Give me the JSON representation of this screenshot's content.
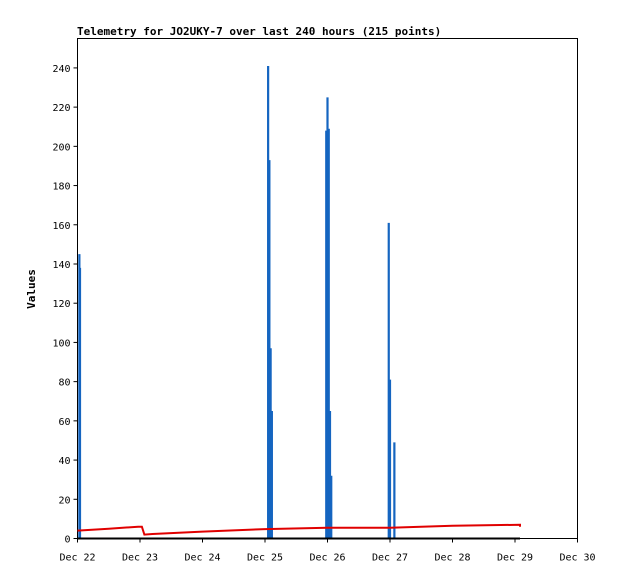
{
  "chart_data": {
    "type": "line",
    "title": "Telemetry for JO2UKY-7 over last 240 hours (215 points)",
    "xlabel": "",
    "ylabel": "Values",
    "x_ticks": [
      "Dec 22",
      "Dec 23",
      "Dec 24",
      "Dec 25",
      "Dec 26",
      "Dec 27",
      "Dec 28",
      "Dec 29",
      "Dec 30"
    ],
    "y_ticks": [
      0,
      20,
      40,
      60,
      80,
      100,
      120,
      140,
      160,
      180,
      200,
      220,
      240
    ],
    "xlim": [
      "Dec 22",
      "Dec 30"
    ],
    "ylim": [
      0,
      255
    ],
    "grid": false,
    "legend": "none",
    "colors": {
      "spikes": "#1565c0",
      "baseline": "#e00000",
      "zero": "#000000"
    },
    "series": [
      {
        "color": "#1565c0",
        "style": "spikes",
        "points": [
          {
            "x": 22.03,
            "y": 145
          },
          {
            "x": 22.04,
            "y": 138
          },
          {
            "x": 25.05,
            "y": 241
          },
          {
            "x": 25.07,
            "y": 193
          },
          {
            "x": 25.09,
            "y": 97
          },
          {
            "x": 25.11,
            "y": 65
          },
          {
            "x": 25.98,
            "y": 208
          },
          {
            "x": 26.0,
            "y": 225
          },
          {
            "x": 26.02,
            "y": 209
          },
          {
            "x": 26.04,
            "y": 65
          },
          {
            "x": 26.06,
            "y": 32
          },
          {
            "x": 26.98,
            "y": 161
          },
          {
            "x": 27.0,
            "y": 81
          },
          {
            "x": 27.07,
            "y": 49
          }
        ]
      },
      {
        "color": "#e00000",
        "style": "line",
        "points": [
          {
            "x": 22.0,
            "y": 4.0
          },
          {
            "x": 22.5,
            "y": 5.0
          },
          {
            "x": 22.97,
            "y": 6.0
          },
          {
            "x": 23.03,
            "y": 6.0
          },
          {
            "x": 23.07,
            "y": 2.0
          },
          {
            "x": 23.2,
            "y": 2.3
          },
          {
            "x": 24.0,
            "y": 3.5
          },
          {
            "x": 25.0,
            "y": 4.8
          },
          {
            "x": 26.0,
            "y": 5.5
          },
          {
            "x": 27.0,
            "y": 5.5
          },
          {
            "x": 28.0,
            "y": 6.5
          },
          {
            "x": 29.08,
            "y": 7.0
          },
          {
            "x": 29.08,
            "y": 6.0
          }
        ]
      },
      {
        "color": "#000000",
        "style": "line",
        "points": [
          {
            "x": 22.0,
            "y": 0
          },
          {
            "x": 29.08,
            "y": 0
          }
        ]
      }
    ]
  }
}
